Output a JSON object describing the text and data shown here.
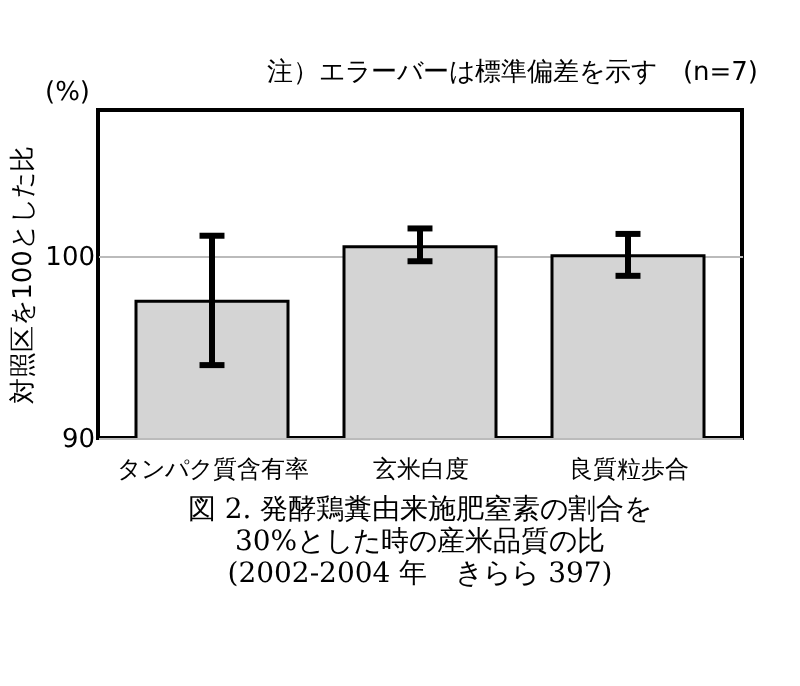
{
  "chart_data": {
    "type": "bar",
    "title": "図 2. 発酵鶏糞由来施肥窒素の割合を\n30%とした時の産米品質の比\n(2002-2004 年　きらら 397)",
    "ylabel": "対照区を100とした比",
    "annotations": [
      "注）エラーバーは標準偏差を示す　(n=7)",
      "(%)"
    ],
    "categories": [
      "タンパク質含有率",
      "玄米白度",
      "良質粒歩合"
    ],
    "values": [
      97.5,
      100.5,
      100.0
    ],
    "errors": [
      [
        94.0,
        101.1
      ],
      [
        99.7,
        101.5
      ],
      [
        98.9,
        101.2
      ]
    ],
    "color": "#d4d4d4",
    "ylim": [
      90,
      108
    ],
    "yticks": [
      90,
      100
    ],
    "grid": "y"
  }
}
